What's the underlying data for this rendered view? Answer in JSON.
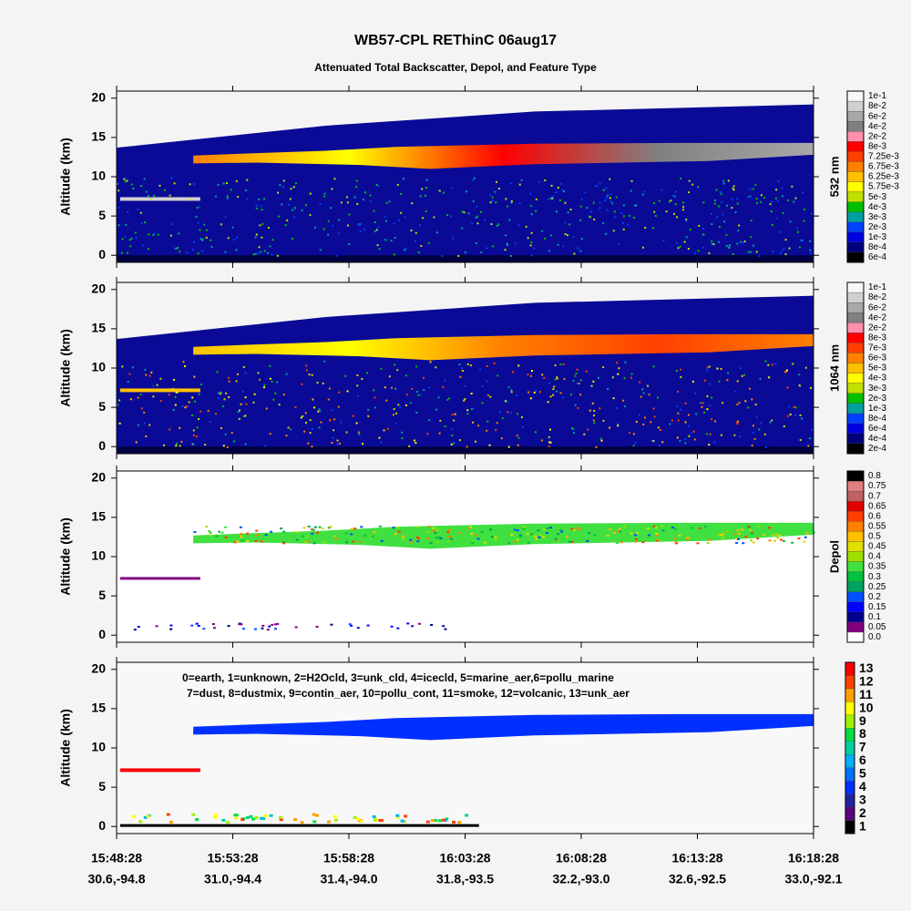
{
  "chart_data": {
    "type": "curtain",
    "title": "WB57-CPL REThinC 06aug17",
    "subtitle": "Attenuated Total Backscatter, Depol, and Feature Type",
    "x_labels": [
      "15:48:28",
      "15:53:28",
      "15:58:28",
      "16:03:28",
      "16:08:28",
      "16:13:28",
      "16:18:28"
    ],
    "x_locations": [
      "30.6,-94.8",
      "31.0,-94.4",
      "31.4,-94.0",
      "31.8,-93.5",
      "32.2,-93.0",
      "32.6,-92.5",
      "33.0,-92.1"
    ],
    "legend_lines": [
      "0=earth, 1=unknown, 2=H2Ocld, 3=unk_cld, 4=icecld, 5=marine_aer,6=pollu_marine",
      "7=dust, 8=dustmix, 9=contin_aer, 10=pollu_cont, 11=smoke, 12=volcanic, 13=unk_aer"
    ],
    "panels": [
      {
        "y_label": "Altitude (km)",
        "ylim": [
          -0.9,
          20.9
        ],
        "yticks": [
          0,
          5,
          10,
          15,
          20
        ],
        "colorbar_title": "532 nm",
        "colorbar": {
          "labels": [
            "6e-4",
            "8e-4",
            "1e-3",
            "2e-3",
            "3e-3",
            "4e-3",
            "5e-3",
            "5.75e-3",
            "6.25e-3",
            "6.75e-3",
            "7.25e-3",
            "8e-3",
            "2e-2",
            "4e-2",
            "6e-2",
            "8e-2",
            "1e-1"
          ],
          "colors": [
            "#000000",
            "#00007a",
            "#0000e0",
            "#0040ff",
            "#00a0a0",
            "#00c000",
            "#c0e000",
            "#ffff00",
            "#ffc000",
            "#ff8000",
            "#ff4000",
            "#ff0000",
            "#ff90b0",
            "#808080",
            "#a8a8a8",
            "#d0d0d0",
            "#f8f8f8"
          ]
        }
      },
      {
        "y_label": "Altitude (km)",
        "ylim": [
          -0.9,
          20.9
        ],
        "yticks": [
          0,
          5,
          10,
          15,
          20
        ],
        "colorbar_title": "1064 nm",
        "colorbar": {
          "labels": [
            "2e-4",
            "4e-4",
            "6e-4",
            "8e-4",
            "1e-3",
            "2e-3",
            "3e-3",
            "4e-3",
            "5e-3",
            "6e-3",
            "7e-3",
            "8e-3",
            "2e-2",
            "4e-2",
            "6e-2",
            "8e-2",
            "1e-1"
          ],
          "colors": [
            "#000000",
            "#00007a",
            "#0000e0",
            "#0040ff",
            "#00a0a0",
            "#00c000",
            "#c0e000",
            "#ffff00",
            "#ffc000",
            "#ff8000",
            "#ff4000",
            "#ff0000",
            "#ff90b0",
            "#808080",
            "#a8a8a8",
            "#d0d0d0",
            "#f8f8f8"
          ]
        }
      },
      {
        "y_label": "Altitude (km)",
        "ylim": [
          -0.9,
          20.9
        ],
        "yticks": [
          0,
          5,
          10,
          15,
          20
        ],
        "colorbar_title": "Depol",
        "colorbar": {
          "labels": [
            "0.0",
            "0.05",
            "0.1",
            "0.15",
            "0.2",
            "0.25",
            "0.3",
            "0.35",
            "0.4",
            "0.45",
            "0.5",
            "0.55",
            "0.6",
            "0.65",
            "0.7",
            "0.75",
            "0.8"
          ],
          "colors": [
            "#ffffff",
            "#800080",
            "#00008b",
            "#0000ff",
            "#0050ff",
            "#00a060",
            "#00c040",
            "#40e040",
            "#a0e000",
            "#e0e000",
            "#ffc000",
            "#ff8000",
            "#ff4000",
            "#e00000",
            "#c06060",
            "#e08080",
            "#000000"
          ]
        }
      },
      {
        "y_label": "Altitude (km)",
        "ylim": [
          -0.9,
          20.9
        ],
        "yticks": [
          0,
          5,
          10,
          15,
          20
        ],
        "colorbar": {
          "labels": [
            1,
            2,
            3,
            4,
            5,
            6,
            7,
            8,
            9,
            10,
            11,
            12,
            13
          ],
          "colors": [
            "#000000",
            "#5a0080",
            "#2020a0",
            "#0030ff",
            "#0070ff",
            "#00b0ff",
            "#00d0a0",
            "#00e040",
            "#a0f000",
            "#ffff00",
            "#ffa000",
            "#ff4000",
            "#ff0000"
          ]
        }
      }
    ]
  }
}
